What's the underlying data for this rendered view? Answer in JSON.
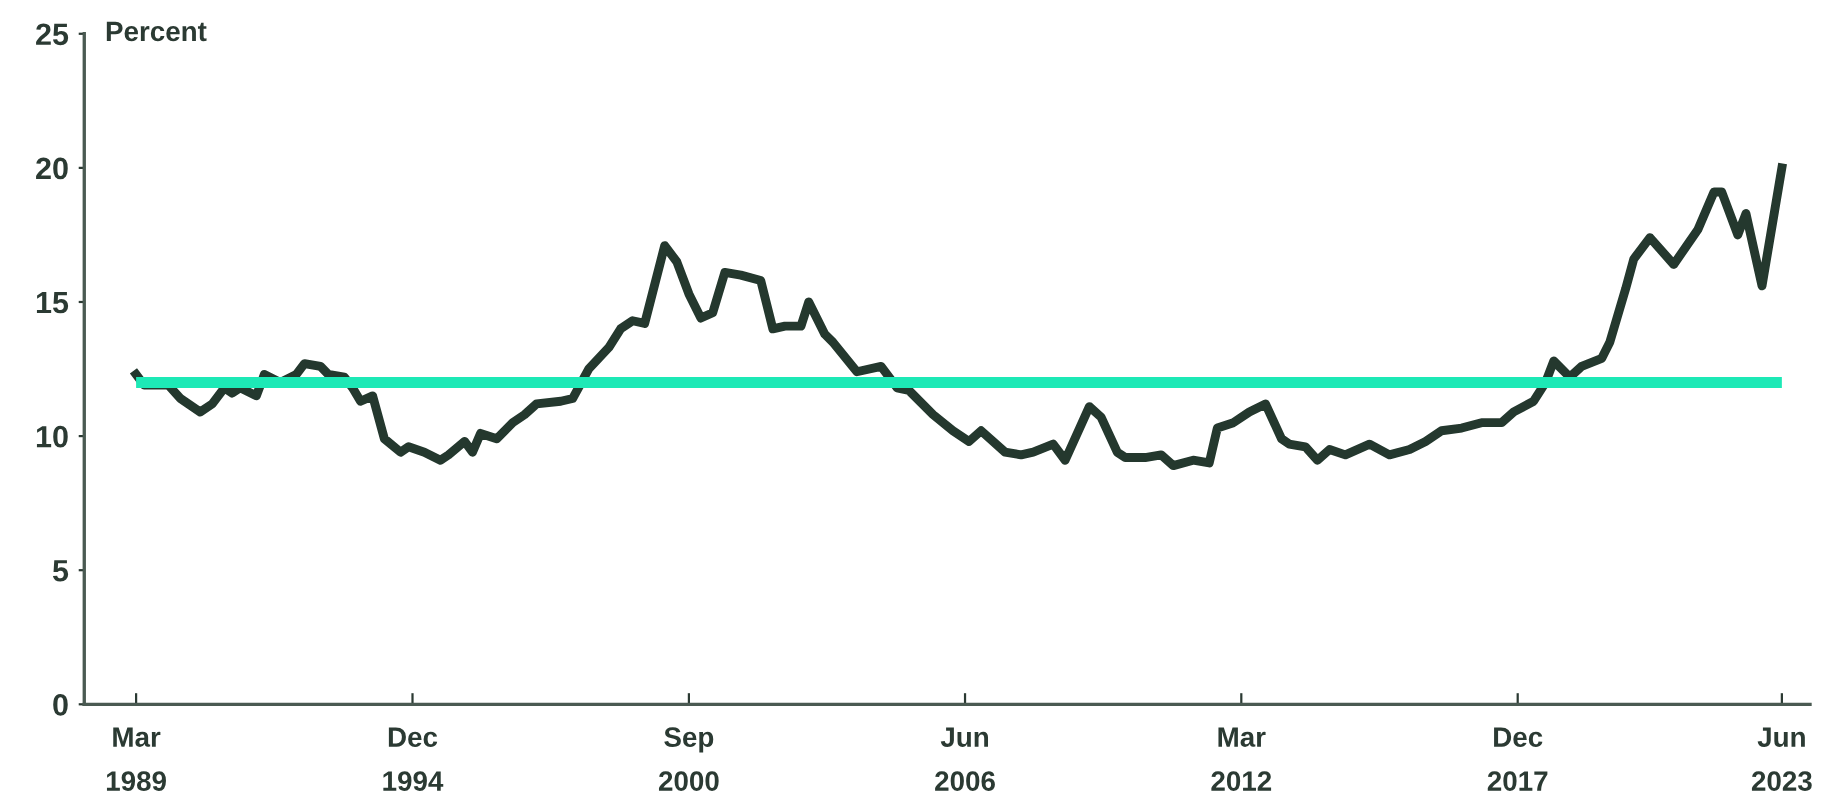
{
  "chart_data": {
    "type": "line",
    "ylabel": "Percent",
    "x": [
      "1989-03",
      "1989-05",
      "1989-11",
      "1990-02",
      "1990-07",
      "1990-10",
      "1991-01",
      "1991-03",
      "1991-05",
      "1991-09",
      "1991-11",
      "1992-03",
      "1992-07",
      "1992-09",
      "1993-01",
      "1993-03",
      "1993-07",
      "1993-09",
      "1993-11",
      "1994-02",
      "1994-05",
      "1994-09",
      "1994-11",
      "1995-03",
      "1995-07",
      "1995-09",
      "1996-01",
      "1996-03",
      "1996-05",
      "1996-09",
      "1997-01",
      "1997-04",
      "1997-07",
      "1998-01",
      "1998-04",
      "1998-08",
      "1999-01",
      "1999-04",
      "1999-07",
      "1999-10",
      "2000-03",
      "2000-06",
      "2000-09",
      "2000-12",
      "2001-03",
      "2001-06",
      "2001-10",
      "2002-03",
      "2002-06",
      "2002-09",
      "2003-01",
      "2003-03",
      "2003-07",
      "2003-09",
      "2004-03",
      "2004-09",
      "2005-01",
      "2005-04",
      "2005-10",
      "2006-03",
      "2006-07",
      "2006-10",
      "2007-04",
      "2007-08",
      "2007-11",
      "2008-04",
      "2008-07",
      "2009-01",
      "2009-04",
      "2009-08",
      "2009-10",
      "2010-03",
      "2010-07",
      "2010-10",
      "2011-03",
      "2011-07",
      "2011-09",
      "2012-01",
      "2012-05",
      "2012-09",
      "2013-01",
      "2013-03",
      "2013-07",
      "2013-10",
      "2014-01",
      "2014-05",
      "2014-11",
      "2015-04",
      "2015-09",
      "2016-01",
      "2016-05",
      "2016-10",
      "2017-03",
      "2017-08",
      "2017-11",
      "2018-04",
      "2018-07",
      "2018-09",
      "2019-01",
      "2019-04",
      "2019-09",
      "2019-11",
      "2020-03",
      "2020-05",
      "2020-09",
      "2021-03",
      "2021-09",
      "2022-01",
      "2022-03",
      "2022-07",
      "2022-09",
      "2023-01",
      "2023-06"
    ],
    "series": [
      {
        "color": "#24382e",
        "values": [
          12.3,
          11.9,
          11.9,
          11.4,
          10.9,
          11.2,
          11.8,
          11.6,
          11.8,
          11.5,
          12.3,
          12.0,
          12.3,
          12.7,
          12.6,
          12.3,
          12.2,
          11.8,
          11.3,
          11.5,
          9.9,
          9.4,
          9.6,
          9.4,
          9.1,
          9.3,
          9.8,
          9.4,
          10.1,
          9.9,
          10.5,
          10.8,
          11.2,
          11.3,
          11.4,
          12.5,
          13.3,
          14.0,
          14.3,
          14.2,
          17.1,
          16.5,
          15.3,
          14.4,
          14.6,
          16.1,
          16.0,
          15.8,
          14.0,
          14.1,
          14.1,
          15.0,
          13.8,
          13.5,
          12.4,
          12.6,
          11.8,
          11.7,
          10.8,
          10.2,
          9.8,
          10.2,
          9.4,
          9.3,
          9.4,
          9.7,
          9.1,
          11.1,
          10.7,
          9.4,
          9.2,
          9.2,
          9.3,
          8.9,
          9.1,
          9.0,
          10.3,
          10.5,
          10.9,
          11.2,
          9.9,
          9.7,
          9.6,
          9.1,
          9.5,
          9.3,
          9.7,
          9.3,
          9.5,
          9.8,
          10.2,
          10.3,
          10.5,
          10.5,
          10.9,
          11.3,
          12.0,
          12.8,
          12.2,
          12.6,
          12.9,
          13.5,
          15.5,
          16.6,
          17.4,
          16.4,
          17.7,
          19.1,
          19.1,
          17.5,
          18.3,
          15.6,
          20.0
        ]
      }
    ],
    "ref_lines": [
      {
        "axis": "y",
        "value": 12.0,
        "label": null,
        "color": "#1de9b6"
      }
    ],
    "xlim": [
      "1988-02",
      "2024-01"
    ],
    "xticks": [
      {
        "value": "1989-03",
        "label": "Mar\n1989"
      },
      {
        "value": "1994-12",
        "label": "Dec\n1994"
      },
      {
        "value": "2000-09",
        "label": "Sep\n2000"
      },
      {
        "value": "2006-06",
        "label": "Jun\n2006"
      },
      {
        "value": "2012-03",
        "label": "Mar\n2012"
      },
      {
        "value": "2017-12",
        "label": "Dec\n2017"
      },
      {
        "value": "2023-06",
        "label": "Jun\n2023"
      }
    ],
    "ylim": [
      0,
      25
    ],
    "yticks": [
      0,
      5,
      10,
      15,
      20,
      25
    ],
    "grid": false,
    "legend": false,
    "marker": "none",
    "line_style": "solid"
  }
}
